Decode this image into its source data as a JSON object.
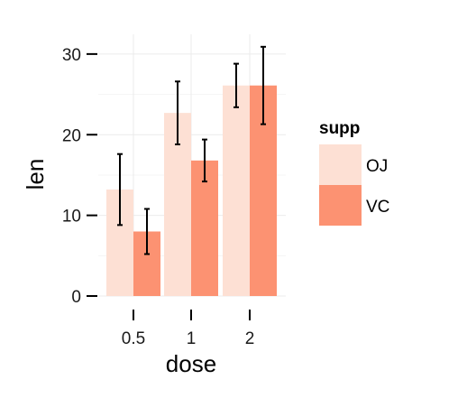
{
  "chart_data": {
    "type": "bar",
    "categories": [
      "0.5",
      "1",
      "2"
    ],
    "xlabel": "dose",
    "ylabel": "len",
    "ylim": [
      0,
      32
    ],
    "yticks": [
      0,
      10,
      20,
      30
    ],
    "grid": true,
    "legend": {
      "title": "supp",
      "placement": "right"
    },
    "series": [
      {
        "name": "OJ",
        "color": "#fde0d4",
        "values": [
          13.2,
          22.7,
          26.1
        ],
        "err_low": [
          8.8,
          18.8,
          23.4
        ],
        "err_high": [
          17.6,
          26.6,
          28.8
        ]
      },
      {
        "name": "VC",
        "color": "#fc9272",
        "values": [
          8.0,
          16.8,
          26.1
        ],
        "err_low": [
          5.2,
          14.2,
          21.3
        ],
        "err_high": [
          10.8,
          19.4,
          30.9
        ]
      }
    ]
  }
}
